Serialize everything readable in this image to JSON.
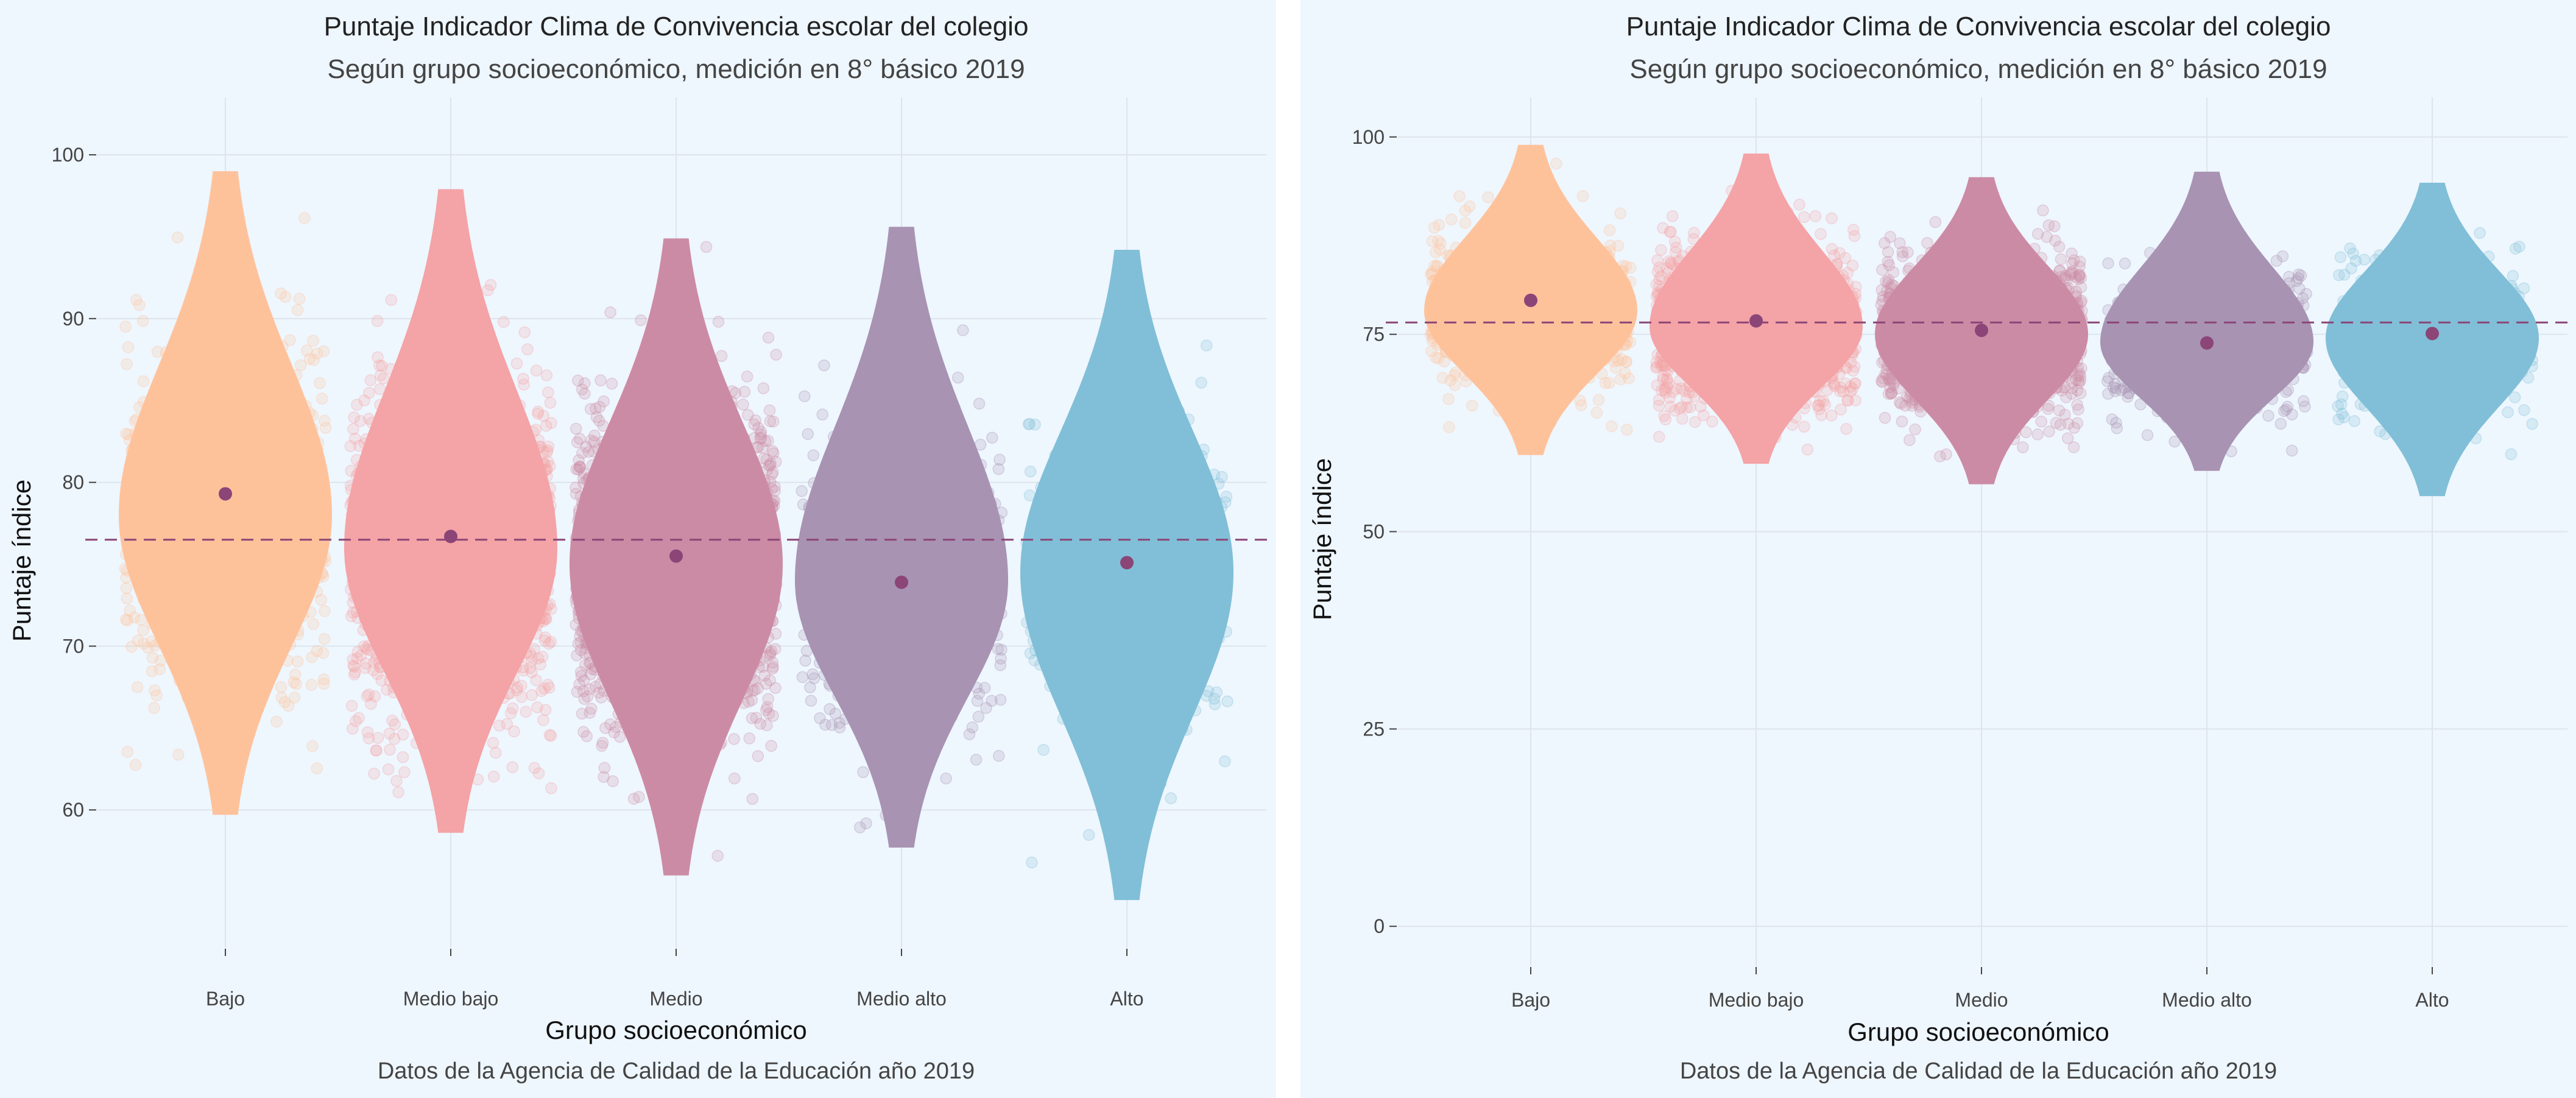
{
  "colors": {
    "background": "#eef6fe",
    "grid": "#dde4ec",
    "mean_point": "#8b4577",
    "reference_line": "#8b4577",
    "groups": [
      "#fec29b",
      "#f4a3a6",
      "#cc8ba5",
      "#a893b3",
      "#80bfd7"
    ]
  },
  "chart_data": [
    {
      "type": "violin",
      "title": "Puntaje Indicador Clima de Convivencia escolar del colegio",
      "subtitle": "Según grupo socioeconómico, medición en 8° básico 2019",
      "xlabel": "Grupo socioeconómico",
      "ylabel": "Puntaje índice",
      "caption": "Datos de la Agencia de Calidad de la Educación año 2019",
      "categories": [
        "Bajo",
        "Medio bajo",
        "Medio",
        "Medio alto",
        "Alto"
      ],
      "ylim": [
        51.6,
        103.5
      ],
      "yticks": [
        60,
        70,
        80,
        90,
        100
      ],
      "means": [
        79.3,
        76.7,
        75.5,
        73.9,
        75.1
      ],
      "violin_range": [
        [
          59.7,
          99.0
        ],
        [
          58.6,
          97.9
        ],
        [
          56.0,
          94.9
        ],
        [
          57.7,
          95.6
        ],
        [
          54.5,
          94.2
        ]
      ],
      "violin_mode": [
        78.0,
        76.0,
        75.0,
        74.0,
        74.5
      ],
      "reference_line": 76.5,
      "grid": true,
      "legend": "none"
    },
    {
      "type": "violin",
      "title": "Puntaje Indicador Clima de Convivencia escolar del colegio",
      "subtitle": "Según grupo socioeconómico, medición en 8° básico 2019",
      "xlabel": "Grupo socioeconómico",
      "ylabel": "Puntaje índice",
      "caption": "Datos de la Agencia de Calidad de la Educación año 2019",
      "categories": [
        "Bajo",
        "Medio bajo",
        "Medio",
        "Medio alto",
        "Alto"
      ],
      "ylim": [
        -5,
        105
      ],
      "yticks": [
        0,
        25,
        50,
        75,
        100
      ],
      "means": [
        79.3,
        76.7,
        75.5,
        73.9,
        75.1
      ],
      "violin_range": [
        [
          59.7,
          99.0
        ],
        [
          58.6,
          97.9
        ],
        [
          56.0,
          94.9
        ],
        [
          57.7,
          95.6
        ],
        [
          54.5,
          94.2
        ]
      ],
      "violin_mode": [
        78.0,
        76.0,
        75.0,
        74.0,
        74.5
      ],
      "reference_line": 76.5,
      "grid": true,
      "legend": "none"
    }
  ]
}
